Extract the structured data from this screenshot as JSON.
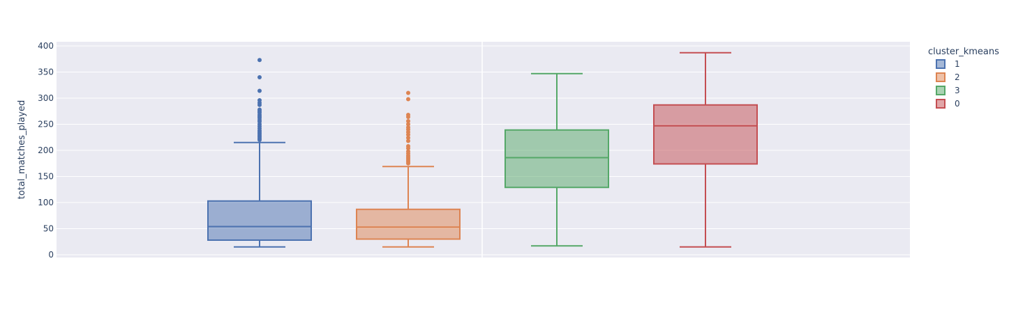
{
  "chart_data": {
    "type": "box",
    "title": "",
    "xlabel": "",
    "ylabel": "total_matches_played",
    "ylim": [
      -5,
      410
    ],
    "y_ticks": [
      0,
      50,
      100,
      150,
      200,
      250,
      300,
      350,
      400
    ],
    "grid": true,
    "legend": {
      "title": "cluster_kmeans",
      "placement": "top-right",
      "entries": [
        "1",
        "2",
        "3",
        "0"
      ]
    },
    "series": [
      {
        "name": "1",
        "color": "#4c72b0",
        "min": 15,
        "q1": 28,
        "median": 54,
        "q3": 103,
        "max": 215,
        "outliers": [
          373,
          340,
          314,
          296,
          291,
          287,
          278,
          275,
          272,
          268,
          265,
          262,
          258,
          255,
          250,
          246,
          242,
          238,
          235,
          232,
          229,
          226,
          223,
          220
        ]
      },
      {
        "name": "2",
        "color": "#dd8452",
        "min": 15,
        "q1": 30,
        "median": 53,
        "q3": 87,
        "max": 169,
        "outliers": [
          310,
          298,
          268,
          264,
          256,
          250,
          244,
          240,
          235,
          230,
          224,
          218,
          208,
          204,
          198,
          194,
          190,
          187,
          184,
          181,
          178,
          175
        ]
      },
      {
        "name": "3",
        "color": "#55a868",
        "min": 17,
        "q1": 129,
        "median": 186,
        "q3": 239,
        "max": 347,
        "outliers": []
      },
      {
        "name": "0",
        "color": "#c44e52",
        "min": 15,
        "q1": 174,
        "median": 247,
        "q3": 287,
        "max": 387,
        "outliers": []
      }
    ]
  }
}
